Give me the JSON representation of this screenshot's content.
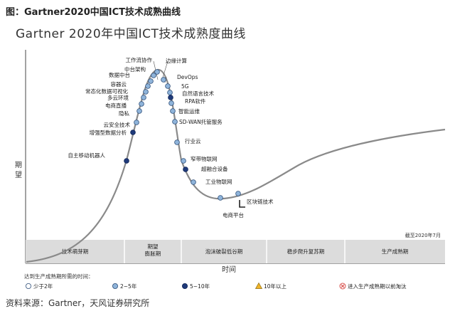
{
  "figure_caption": "图：Gartner2020中国ICT技术成熟曲线",
  "source": "资料来源：Gartner，天风证券研究所",
  "chart_data": {
    "type": "scatter",
    "title": "Gartner 2020年中国ICT技术成熟度曲线",
    "xlabel": "时间",
    "ylabel": "期望",
    "date_note": "截至2020年7月",
    "phases": [
      "技术萌芽期",
      "期望膨胀期",
      "泡沫破裂低谷期",
      "稳步爬升复苏期",
      "生产成熟期"
    ],
    "legend_title": "达到生产成熟期所需的时间：",
    "legend": [
      {
        "key": "lt2",
        "label": "少于2年",
        "color": "#ffffff"
      },
      {
        "key": "2to5",
        "label": "2~5年",
        "color": "#8fb4da"
      },
      {
        "key": "5to10",
        "label": "5~10年",
        "color": "#1f3a7a"
      },
      {
        "key": "gt10",
        "label": "10年以上",
        "color": "#f0b429"
      },
      {
        "key": "obsolete",
        "label": "进入生产成熟期以前淘汰",
        "color": "#d9534f"
      }
    ],
    "points": [
      {
        "label": "自主移动机器人",
        "category": "5to10"
      },
      {
        "label": "增强型数据分析",
        "category": "5to10"
      },
      {
        "label": "云安全技术",
        "category": "2to5"
      },
      {
        "label": "隐私",
        "category": "2to5"
      },
      {
        "label": "电商直播",
        "category": "2to5"
      },
      {
        "label": "多云环境",
        "category": "2to5"
      },
      {
        "label": "常态化数据可视化",
        "category": "2to5"
      },
      {
        "label": "容器云",
        "category": "2to5"
      },
      {
        "label": "数据中台",
        "category": "2to5"
      },
      {
        "label": "中台架构",
        "category": "2to5"
      },
      {
        "label": "工作流协作",
        "category": "2to5"
      },
      {
        "label": "边缘计算",
        "category": "2to5"
      },
      {
        "label": "DevOps",
        "category": "2to5"
      },
      {
        "label": "5G",
        "category": "2to5"
      },
      {
        "label": "自然语言技术",
        "category": "5to10"
      },
      {
        "label": "RPA软件",
        "category": "2to5"
      },
      {
        "label": "智能运维",
        "category": "2to5"
      },
      {
        "label": "SD-WAN托管服务",
        "category": "2to5"
      },
      {
        "label": "行业云",
        "category": "2to5"
      },
      {
        "label": "窄带物联网",
        "category": "2to5"
      },
      {
        "label": "超融合设备",
        "category": "5to10"
      },
      {
        "label": "工业物联网",
        "category": "2to5"
      },
      {
        "label": "电商平台",
        "category": "2to5"
      },
      {
        "label": "区块链技术",
        "category": "2to5"
      }
    ]
  }
}
